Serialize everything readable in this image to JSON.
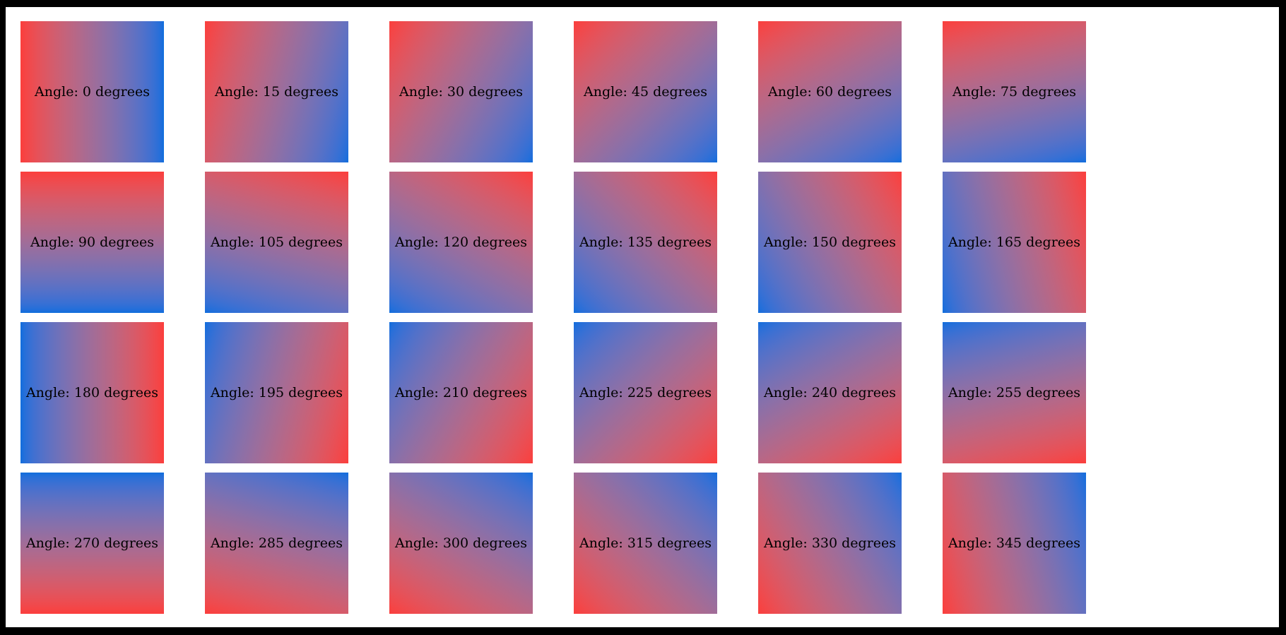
{
  "frame": {
    "border_color": "#000000",
    "canvas_color": "#ffffff",
    "text_color": "#000000"
  },
  "gradient": {
    "start_color": "#fb3e3c",
    "end_color": "#0e6edd",
    "fallback_mid_color": "#ab6d96",
    "interpolation": "oklab"
  },
  "tiles": [
    {
      "label": "Angle: 0 degrees",
      "angle_degrees": 0
    },
    {
      "label": "Angle: 15 degrees",
      "angle_degrees": 15
    },
    {
      "label": "Angle: 30 degrees",
      "angle_degrees": 30
    },
    {
      "label": "Angle: 45 degrees",
      "angle_degrees": 45
    },
    {
      "label": "Angle: 60 degrees",
      "angle_degrees": 60
    },
    {
      "label": "Angle: 75 degrees",
      "angle_degrees": 75
    },
    {
      "label": "Angle: 90 degrees",
      "angle_degrees": 90
    },
    {
      "label": "Angle: 105 degrees",
      "angle_degrees": 105
    },
    {
      "label": "Angle: 120 degrees",
      "angle_degrees": 120
    },
    {
      "label": "Angle: 135 degrees",
      "angle_degrees": 135
    },
    {
      "label": "Angle: 150 degrees",
      "angle_degrees": 150
    },
    {
      "label": "Angle: 165 degrees",
      "angle_degrees": 165
    },
    {
      "label": "Angle: 180 degrees",
      "angle_degrees": 180
    },
    {
      "label": "Angle: 195 degrees",
      "angle_degrees": 195
    },
    {
      "label": "Angle: 210 degrees",
      "angle_degrees": 210
    },
    {
      "label": "Angle: 225 degrees",
      "angle_degrees": 225
    },
    {
      "label": "Angle: 240 degrees",
      "angle_degrees": 240
    },
    {
      "label": "Angle: 255 degrees",
      "angle_degrees": 255
    },
    {
      "label": "Angle: 270 degrees",
      "angle_degrees": 270
    },
    {
      "label": "Angle: 285 degrees",
      "angle_degrees": 285
    },
    {
      "label": "Angle: 300 degrees",
      "angle_degrees": 300
    },
    {
      "label": "Angle: 315 degrees",
      "angle_degrees": 315
    },
    {
      "label": "Angle: 330 degrees",
      "angle_degrees": 330
    },
    {
      "label": "Angle: 345 degrees",
      "angle_degrees": 345
    }
  ]
}
